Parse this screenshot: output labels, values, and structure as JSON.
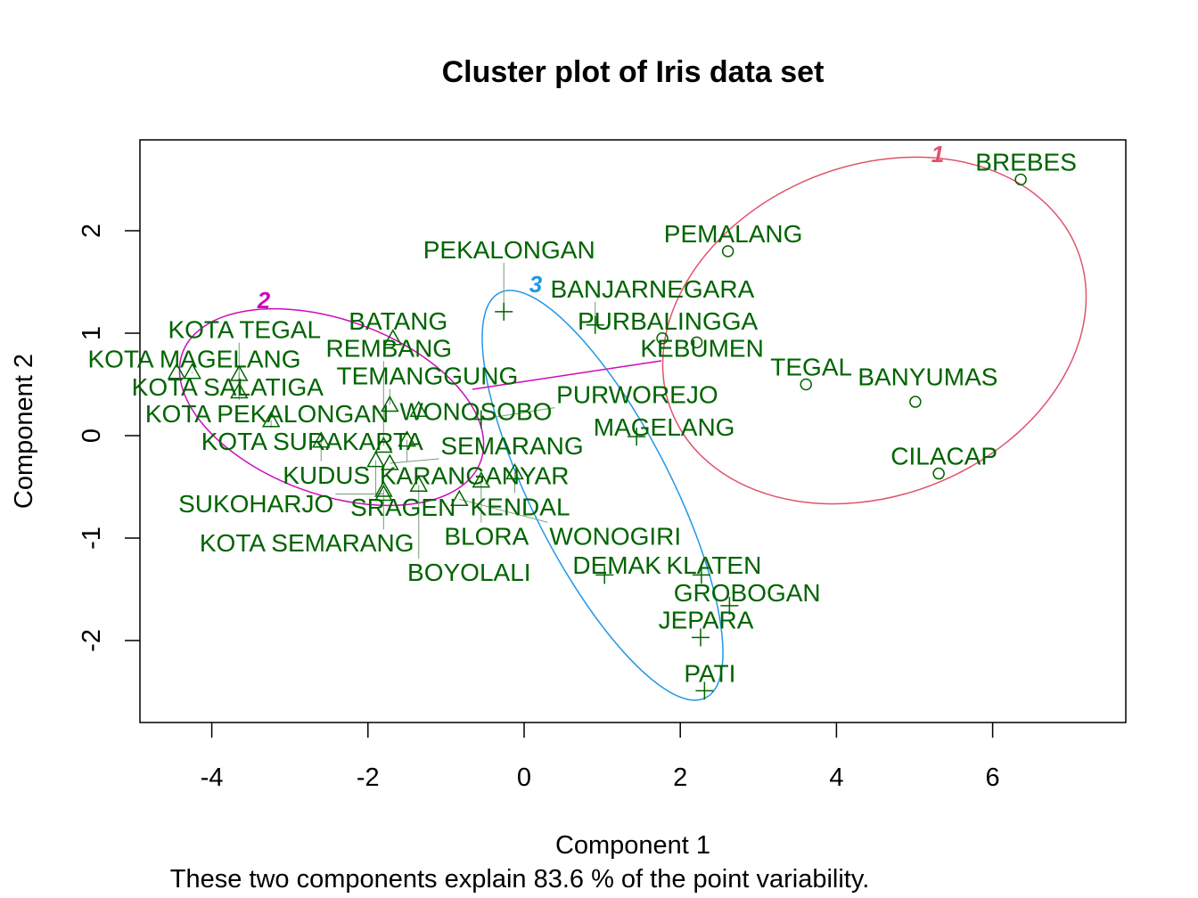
{
  "chart_data": {
    "type": "scatter",
    "title": "Cluster plot of Iris data set",
    "xlabel": "Component 1",
    "ylabel": "Component 2",
    "subtitle": "These two components explain 83.6 % of the point variability.",
    "xlim": [
      -4.9,
      7.7
    ],
    "ylim": [
      -2.8,
      2.9
    ],
    "xticks": [
      -4,
      -2,
      0,
      2,
      4,
      6
    ],
    "yticks": [
      -2,
      -1,
      0,
      1,
      2
    ],
    "grid": false,
    "colors": {
      "label": "#006400",
      "cluster1": "#DF536B",
      "cluster2": "#CD0BBC",
      "cluster3": "#2297E6"
    },
    "clusters": [
      {
        "id": "1",
        "marker": "circle",
        "points": [
          {
            "label": "BREBES",
            "x": 6.36,
            "y": 2.5
          },
          {
            "label": "PEMALANG",
            "x": 2.61,
            "y": 1.8
          },
          {
            "label": "PURBALINGGA",
            "x": 1.77,
            "y": 0.95
          },
          {
            "label": "KEBUMEN",
            "x": 2.21,
            "y": 0.91
          },
          {
            "label": "TEGAL",
            "x": 3.61,
            "y": 0.5
          },
          {
            "label": "BANYUMAS",
            "x": 5.01,
            "y": 0.33
          },
          {
            "label": "CILACAP",
            "x": 5.31,
            "y": -0.37
          }
        ]
      },
      {
        "id": "2",
        "marker": "triangle",
        "points": [
          {
            "label": "BATANG",
            "x": -1.68,
            "y": 0.95
          },
          {
            "label": "KOTA MAGELANG",
            "x": -4.45,
            "y": 0.62
          },
          {
            "label": "KOTA SALATIGA",
            "x": -4.25,
            "y": 0.62
          },
          {
            "label": "KOTA PEKALONGAN",
            "x": -3.65,
            "y": 0.6
          },
          {
            "label": "KOTA TEGAL",
            "x": -3.65,
            "y": 0.43
          },
          {
            "label": "KOTA SURAKARTA",
            "x": -3.24,
            "y": 0.15
          },
          {
            "label": "TEMANGGUNG",
            "x": -1.72,
            "y": 0.3
          },
          {
            "label": "WONOSOBO",
            "x": -1.35,
            "y": 0.25
          },
          {
            "label": "KUDUS",
            "x": -2.6,
            "y": -0.05
          },
          {
            "label": "KARANGANYAR",
            "x": -1.5,
            "y": -0.04
          },
          {
            "label": "REMBANG",
            "x": -1.8,
            "y": -0.1
          },
          {
            "label": "SRAGEN",
            "x": -1.9,
            "y": -0.24
          },
          {
            "label": "SEMARANG",
            "x": -1.72,
            "y": -0.27
          },
          {
            "label": "KENDAL",
            "x": -0.12,
            "y": -0.36
          },
          {
            "label": "BLORA",
            "x": -0.55,
            "y": -0.44
          },
          {
            "label": "KOTA SEMARANG",
            "x": -1.8,
            "y": -0.53
          },
          {
            "label": "BOYOLALI",
            "x": -1.35,
            "y": -0.48
          },
          {
            "label": "SUKOHARJO",
            "x": -1.8,
            "y": -0.57
          },
          {
            "label": "WONOGIRI",
            "x": -0.83,
            "y": -0.62
          }
        ]
      },
      {
        "id": "3",
        "marker": "plus",
        "points": [
          {
            "label": "PEKALONGAN",
            "x": -0.26,
            "y": 1.21
          },
          {
            "label": "BANJARNEGARA",
            "x": 0.91,
            "y": 1.08
          },
          {
            "label": "PURWOREJO",
            "x": -0.55,
            "y": 0.16
          },
          {
            "label": "MAGELANG",
            "x": 1.44,
            "y": -0.01
          },
          {
            "label": "DEMAK",
            "x": 1.03,
            "y": -1.36
          },
          {
            "label": "KLATEN",
            "x": 2.27,
            "y": -1.36
          },
          {
            "label": "GROBOGAN",
            "x": 2.63,
            "y": -1.66
          },
          {
            "label": "JEPARA",
            "x": 2.26,
            "y": -1.97
          },
          {
            "label": "PATI",
            "x": 2.31,
            "y": -2.49
          }
        ]
      }
    ]
  }
}
